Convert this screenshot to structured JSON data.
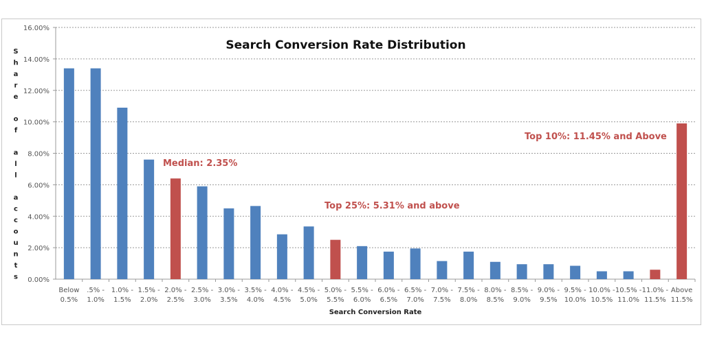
{
  "chart_data": {
    "type": "bar",
    "title": "Search Conversion Rate Distribution",
    "xlabel": "Search Conversion Rate",
    "ylabel": "Share of all accounts",
    "ylim": [
      0,
      16
    ],
    "yticks": [
      "0.00%",
      "2.00%",
      "4.00%",
      "6.00%",
      "8.00%",
      "10.00%",
      "12.00%",
      "14.00%",
      "16.00%"
    ],
    "grid": true,
    "categories": [
      [
        "Below",
        "0.5%"
      ],
      [
        ".5% -",
        "1.0%"
      ],
      [
        "1.0% -",
        "1.5%"
      ],
      [
        "1.5% -",
        "2.0%"
      ],
      [
        "2.0% -",
        "2.5%"
      ],
      [
        "2.5% -",
        "3.0%"
      ],
      [
        "3.0% -",
        "3.5%"
      ],
      [
        "3.5% -",
        "4.0%"
      ],
      [
        "4.0% -",
        "4.5%"
      ],
      [
        "4.5% -",
        "5.0%"
      ],
      [
        "5.0% -",
        "5.5%"
      ],
      [
        "5.5% -",
        "6.0%"
      ],
      [
        "6.0% -",
        "6.5%"
      ],
      [
        "6.5% -",
        "7.0%"
      ],
      [
        "7.0% -",
        "7.5%"
      ],
      [
        "7.5% -",
        "8.0%"
      ],
      [
        "8.0% -",
        "8.5%"
      ],
      [
        "8.5% -",
        "9.0%"
      ],
      [
        "9.0% -",
        "9.5%"
      ],
      [
        "9.5% -",
        "10.0%"
      ],
      [
        "10.0% -",
        "10.5%"
      ],
      [
        "10.5% -",
        "11.0%"
      ],
      [
        "11.0% -",
        "11.5%"
      ],
      [
        "Above",
        "11.5%"
      ]
    ],
    "values": [
      13.4,
      13.4,
      10.9,
      7.6,
      6.4,
      5.9,
      4.5,
      4.65,
      2.85,
      3.35,
      2.5,
      2.1,
      1.75,
      1.95,
      1.15,
      1.75,
      1.1,
      0.95,
      0.95,
      0.85,
      0.5,
      0.5,
      0.6,
      9.9
    ],
    "highlighted": [
      4,
      10,
      22,
      23
    ],
    "colors": {
      "bar": "#4f81bd",
      "highlight": "#c0504d",
      "annotation": "#c0504d"
    },
    "annotations": [
      {
        "text": "Median: 2.35%",
        "category": 4
      },
      {
        "text": "Top 25%: 5.31% and above",
        "category": 10
      },
      {
        "text": "Top 10%: 11.45% and Above",
        "category": 23
      }
    ]
  }
}
